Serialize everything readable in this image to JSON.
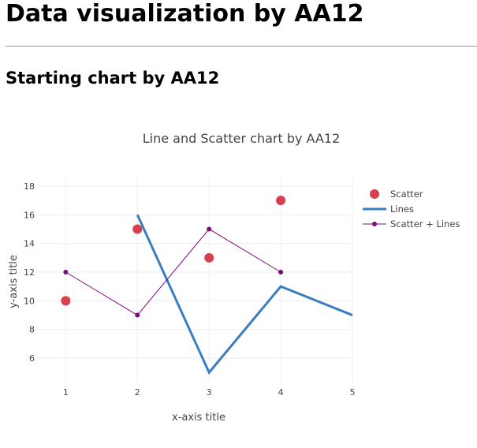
{
  "page": {
    "title": "Data visualization by AA12",
    "section_title": "Starting chart by AA12"
  },
  "chart_data": {
    "type": "line",
    "title": "Line and Scatter chart by AA12",
    "xlabel": "x-axis title",
    "ylabel": "y-axis title",
    "xlim": [
      0.6,
      5
    ],
    "ylim": [
      4.3,
      18.6
    ],
    "x_ticks": [
      1,
      2,
      3,
      4,
      5
    ],
    "y_ticks": [
      6,
      8,
      10,
      12,
      14,
      16,
      18
    ],
    "grid": true,
    "legend_position": "right",
    "series": [
      {
        "name": "Scatter",
        "mode": "markers",
        "color": "#d6404f",
        "x": [
          1,
          2,
          3,
          4
        ],
        "y": [
          10,
          15,
          13,
          17
        ]
      },
      {
        "name": "Lines",
        "mode": "lines",
        "color": "#3a7ebf",
        "x": [
          2,
          3,
          4,
          5
        ],
        "y": [
          16,
          5,
          11,
          9
        ]
      },
      {
        "name": "Scatter + Lines",
        "mode": "lines+markers",
        "color": "#7a0c7a",
        "x": [
          1,
          2,
          3,
          4
        ],
        "y": [
          12,
          9,
          15,
          12
        ]
      }
    ]
  }
}
